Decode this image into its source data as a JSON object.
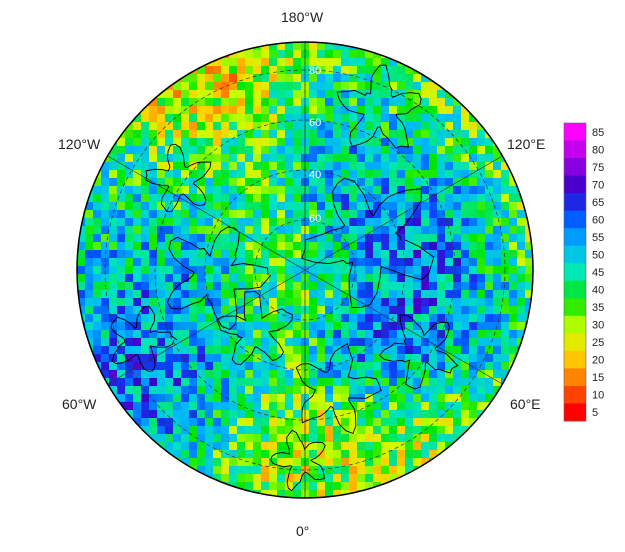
{
  "map": {
    "projection": "north-polar-stereographic",
    "colormap": [
      "#ff0000",
      "#ff6a00",
      "#ffd200",
      "#c8ff00",
      "#00e600",
      "#00e6b4",
      "#00b4ff",
      "#0050ff",
      "#3c00c8",
      "#a000e6",
      "#ff00ff"
    ],
    "lon_labels": {
      "top": "180°W",
      "upper_left": "120°W",
      "upper_right": "120°E",
      "lower_left": "60°W",
      "lower_right": "60°E",
      "bottom": "0°"
    },
    "lat_labels": [
      "80",
      "60",
      "40",
      "60"
    ]
  },
  "colorbar": {
    "ticks": [
      "85",
      "80",
      "75",
      "70",
      "65",
      "60",
      "55",
      "50",
      "45",
      "40",
      "35",
      "30",
      "25",
      "20",
      "15",
      "10",
      "5"
    ]
  }
}
